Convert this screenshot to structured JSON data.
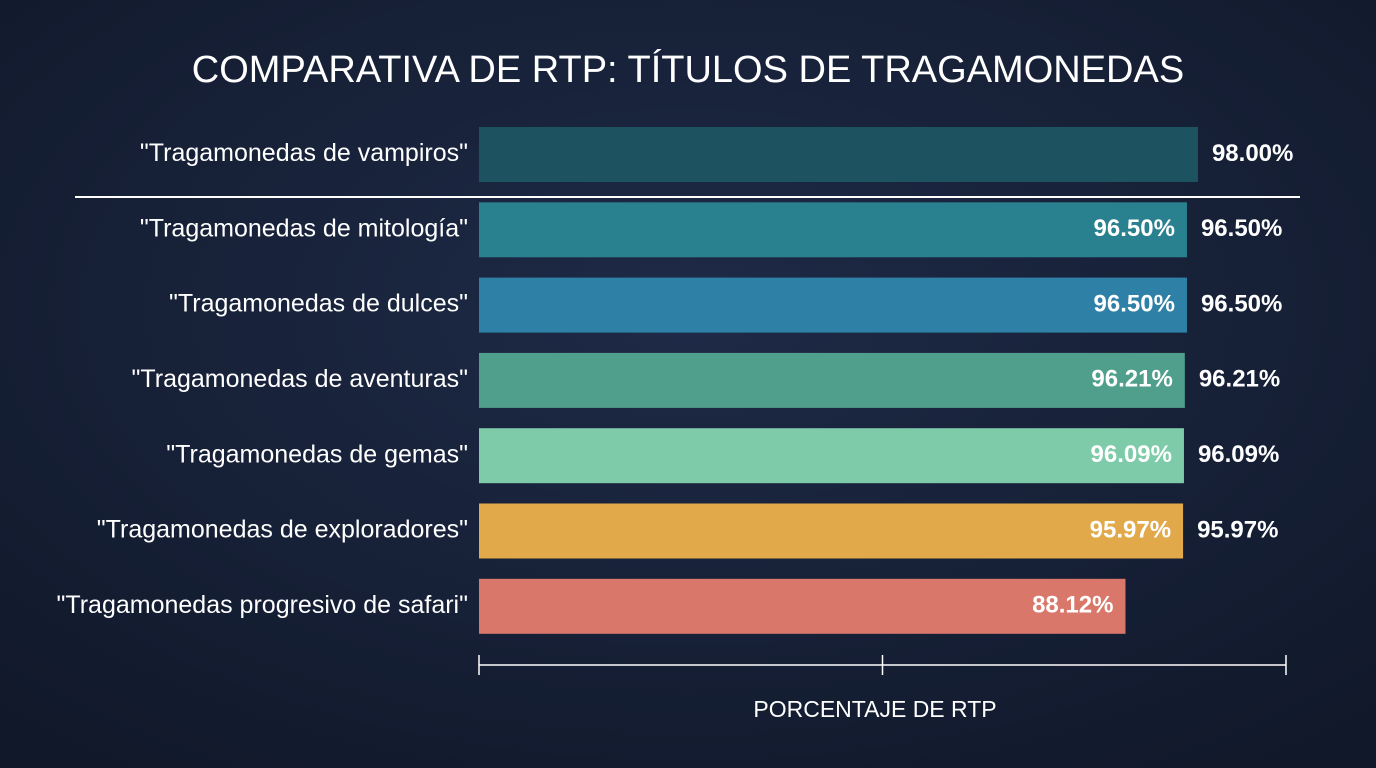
{
  "chart_data": {
    "type": "bar",
    "orientation": "horizontal",
    "title": "COMPARATIVA DE RTP: TÍTULOS DE TRAGAMONEDAS",
    "x_label": "PORCENTAJE DE RTP",
    "categories": [
      "\"Tragamonedas de vampiros\"",
      "\"Tragamonedas de mitología\"",
      "\"Tragamonedas de dulces\"",
      "\"Tragamonedas de aventuras\"",
      "\"Tragamonedas de gemas\"",
      "\"Tragamonedas de exploradores\"",
      "\"Tragamonedas progresivo de safari\""
    ],
    "values": [
      98.0,
      96.5,
      96.5,
      96.21,
      96.09,
      95.97,
      88.12
    ],
    "value_labels": [
      "98.00%",
      "96.50%",
      "96.50%",
      "96.21%",
      "96.09%",
      "95.97%",
      "88.12%"
    ],
    "colors": [
      "#1d5361",
      "#29808f",
      "#2f80a6",
      "#4f9f8c",
      "#7ecba9",
      "#e2a94b",
      "#d9786a"
    ],
    "xlim": [
      0,
      110
    ],
    "xticks": [
      0,
      55,
      110
    ]
  }
}
